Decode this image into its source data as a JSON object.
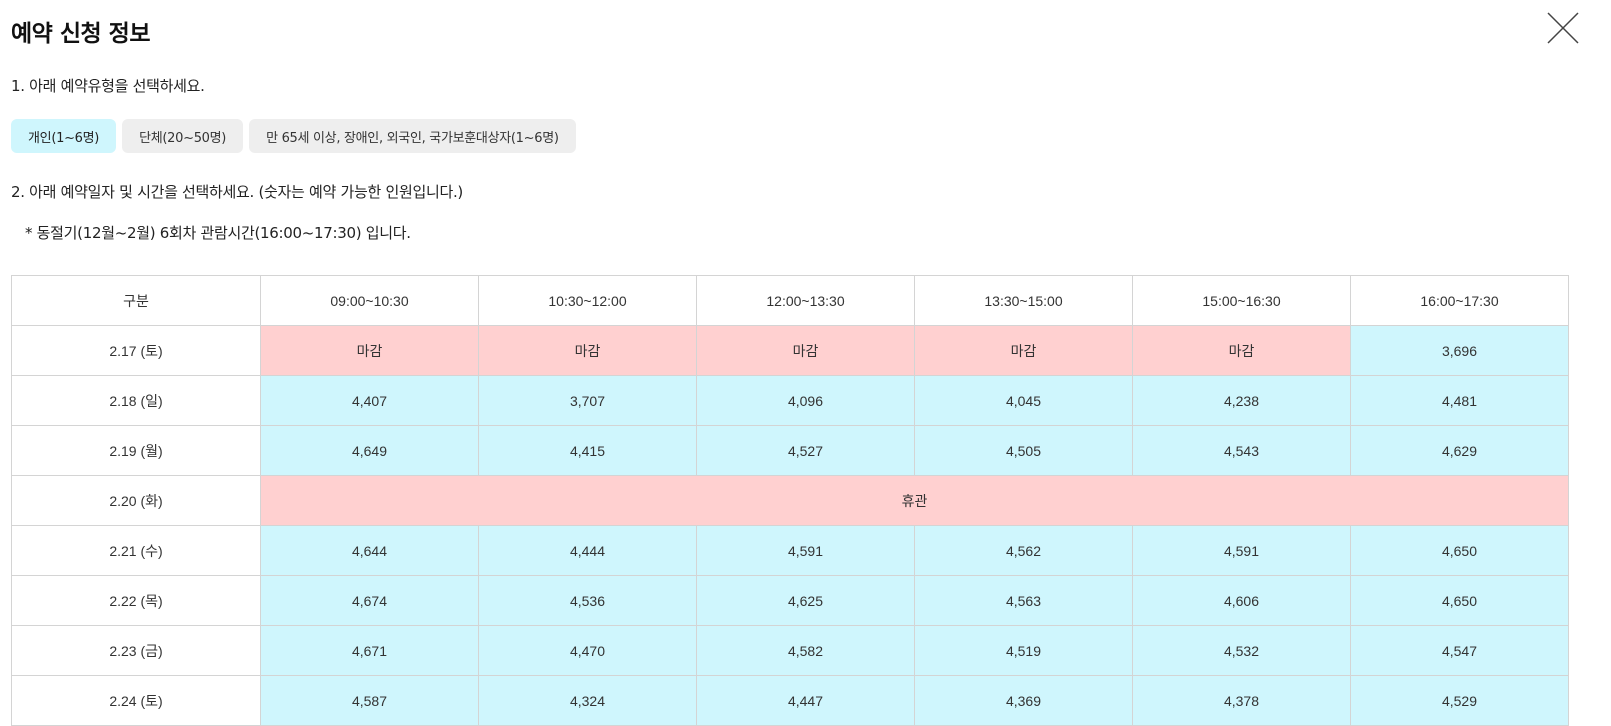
{
  "modal": {
    "title": "예약 신청 정보"
  },
  "step1": {
    "label": "1. 아래 예약유형을 선택하세요.",
    "types": [
      {
        "label": "개인(1~6명)",
        "active": true
      },
      {
        "label": "단체(20~50명)",
        "active": false
      },
      {
        "label": "만 65세 이상, 장애인, 외국인, 국가보훈대상자(1~6명)",
        "active": false
      }
    ]
  },
  "step2": {
    "label": "2. 아래 예약일자 및 시간을 선택하세요. (숫자는 예약 가능한 인원입니다.)",
    "note": "* 동절기(12월~2월) 6회차 관람시간(16:00~17:30) 입니다."
  },
  "table": {
    "headers": [
      "구분",
      "09:00~10:30",
      "10:30~12:00",
      "12:00~13:30",
      "13:30~15:00",
      "15:00~16:30",
      "16:00~17:30"
    ],
    "rows": [
      {
        "date": "2.17 (토)",
        "cells": [
          "마감",
          "마감",
          "마감",
          "마감",
          "마감",
          "3,696"
        ],
        "closed": [
          true,
          true,
          true,
          true,
          true,
          false
        ]
      },
      {
        "date": "2.18 (일)",
        "cells": [
          "4,407",
          "3,707",
          "4,096",
          "4,045",
          "4,238",
          "4,481"
        ],
        "closed": [
          false,
          false,
          false,
          false,
          false,
          false
        ]
      },
      {
        "date": "2.19 (월)",
        "cells": [
          "4,649",
          "4,415",
          "4,527",
          "4,505",
          "4,543",
          "4,629"
        ],
        "closed": [
          false,
          false,
          false,
          false,
          false,
          false
        ]
      },
      {
        "date": "2.20 (화)",
        "holiday": "휴관"
      },
      {
        "date": "2.21 (수)",
        "cells": [
          "4,644",
          "4,444",
          "4,591",
          "4,562",
          "4,591",
          "4,650"
        ],
        "closed": [
          false,
          false,
          false,
          false,
          false,
          false
        ]
      },
      {
        "date": "2.22 (목)",
        "cells": [
          "4,674",
          "4,536",
          "4,625",
          "4,563",
          "4,606",
          "4,650"
        ],
        "closed": [
          false,
          false,
          false,
          false,
          false,
          false
        ]
      },
      {
        "date": "2.23 (금)",
        "cells": [
          "4,671",
          "4,470",
          "4,582",
          "4,519",
          "4,532",
          "4,547"
        ],
        "closed": [
          false,
          false,
          false,
          false,
          false,
          false
        ]
      },
      {
        "date": "2.24 (토)",
        "cells": [
          "4,587",
          "4,324",
          "4,447",
          "4,369",
          "4,378",
          "4,529"
        ],
        "closed": [
          false,
          false,
          false,
          false,
          false,
          false
        ]
      }
    ]
  },
  "icons": {
    "close": "close-icon"
  },
  "colors": {
    "available": "#cff6fd",
    "closed": "#ffd0d0",
    "active_type": "#cff6fd",
    "inactive_type": "#eeeeee"
  }
}
